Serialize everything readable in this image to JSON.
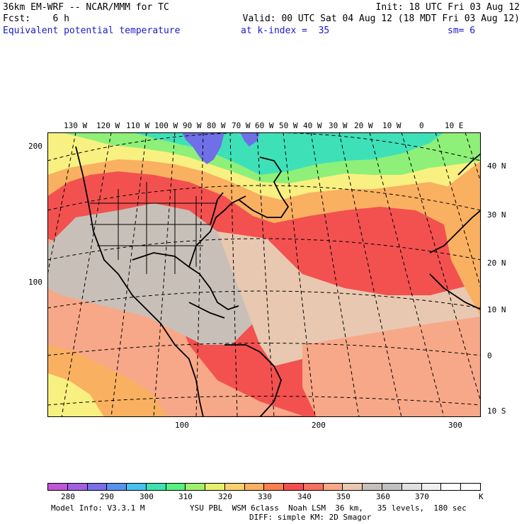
{
  "header": {
    "line1_left": "36km EM-WRF -- NCAR/MMM for TC",
    "line1_right": "Init: 18 UTC Fri 03 Aug 12",
    "line2_left": "Fcst:    6 h",
    "line2_right": "Valid: 00 UTC Sat 04 Aug 12 (18 MDT Fri 03 Aug 12)",
    "line3_field": "Equivalent potential temperature",
    "line3_level": "at k-index =  35",
    "line3_sm": "sm= 6"
  },
  "map": {
    "longitude_labels": [
      "130 W",
      "120 W",
      "110 W",
      "100 W",
      "90 W",
      "80 W",
      "70 W",
      "60 W",
      "50 W",
      "40 W",
      "30 W",
      "20 W",
      "10 W",
      "0",
      "10 E"
    ],
    "latitude_labels": [
      "40 N",
      "30 N",
      "20 N",
      "10 N",
      "0",
      "10 S"
    ],
    "grid_y_labels": [
      "200",
      "100"
    ],
    "grid_x_labels": [
      "100",
      "200",
      "300"
    ],
    "colors": {
      "cold": "#6f6fe8",
      "cyan": "#3ee0b8",
      "green": "#8ef078",
      "yellow": "#f8f080",
      "orange": "#f9b060",
      "red": "#f2514f",
      "salmon": "#f7a888",
      "tan": "#e8c8b0",
      "gray": "#c8c0b8"
    }
  },
  "colorbar": {
    "unit": "K",
    "colors": [
      "#c056d8",
      "#a060e0",
      "#7a6ee8",
      "#5a90f0",
      "#48c0f0",
      "#40e0b0",
      "#58f080",
      "#a0f070",
      "#e8f070",
      "#f8d070",
      "#f9b060",
      "#f88050",
      "#f25050",
      "#f57060",
      "#f7a888",
      "#e8c8b0",
      "#c8c0b8",
      "#c0c0c0",
      "#e0e0e0",
      "#f0f0f0",
      "#ffffff",
      "#ffffff"
    ],
    "labels": [
      "280",
      "290",
      "300",
      "310",
      "320",
      "330",
      "340",
      "350",
      "360",
      "370"
    ]
  },
  "footer": {
    "model_info": "Model Info: V3.3.1 M",
    "physics": "YSU PBL  WSM 6class  Noah LSM  36 km,   35 levels,  180 sec",
    "diffusion": "DIFF: simple KM: 2D Smagor"
  }
}
